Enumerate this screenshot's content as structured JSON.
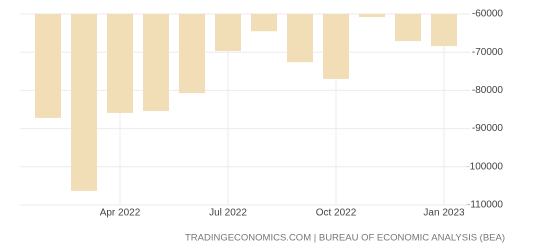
{
  "chart_data": {
    "type": "bar",
    "categories": [
      null,
      null,
      "Apr 2022",
      null,
      null,
      "Jul 2022",
      null,
      null,
      "Oct 2022",
      null,
      null,
      "Jan 2023"
    ],
    "values": [
      -87200,
      -106300,
      -85900,
      -85400,
      -80700,
      -69700,
      -64500,
      -72600,
      -77000,
      -60800,
      -67100,
      -68400
    ],
    "color": "#f1deb6",
    "ylim": [
      -110000,
      -60000
    ],
    "yticks": [
      -60000,
      -70000,
      -80000,
      -90000,
      -100000,
      -110000
    ],
    "grid": true,
    "source": "TRADINGECONOMICS.COM | BUREAU OF ECONOMIC ANALYSIS (BEA)"
  }
}
